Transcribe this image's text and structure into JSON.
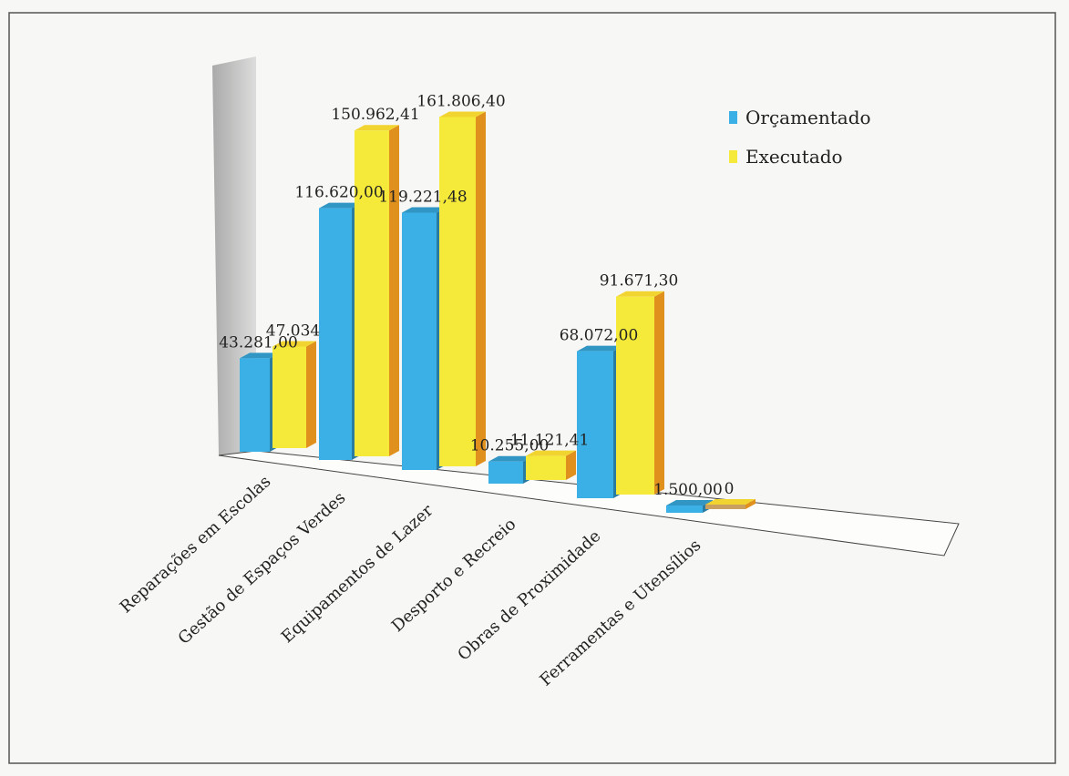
{
  "chart_data": {
    "type": "bar",
    "categories": [
      "Reparações em Escolas",
      "Gestão de Espaços Verdes",
      "Equipamentos de Lazer",
      "Desporto e Recreio",
      "Obras de Proximidade",
      "Ferramentas e Utensílios"
    ],
    "series": [
      {
        "name": "Orçamentado",
        "values": [
          43281.0,
          116620.0,
          119221.48,
          10255.0,
          68072.0,
          1500.0
        ],
        "labels": [
          "43.281,00",
          "116.620,00",
          "119.221,48",
          "10.255,00",
          "68.072,00",
          "1.500,00"
        ],
        "color": "#3ab0e6"
      },
      {
        "name": "Executado",
        "values": [
          47034.0,
          150962.41,
          161806.4,
          11121.41,
          91671.3,
          0
        ],
        "labels": [
          "47.034",
          "150.962,41",
          "161.806,40",
          "11.121,41",
          "91.671,30",
          "0"
        ],
        "color": "#f5ea3a"
      }
    ],
    "ylim": [
      0,
      180000
    ],
    "grid": false,
    "legend_position": "top-right",
    "style": "3d-column"
  }
}
